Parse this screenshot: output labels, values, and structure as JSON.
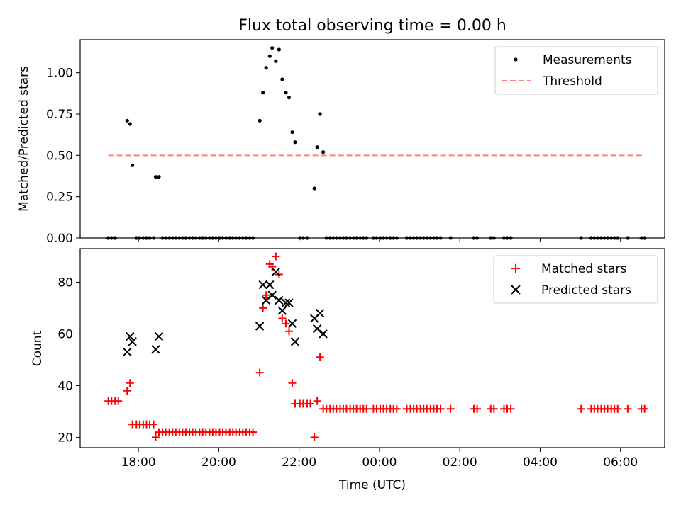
{
  "chart_data": [
    {
      "type": "scatter",
      "title": "Flux total observing time = 0.00 h",
      "xlabel": "",
      "ylabel": "Matched/Predicted stars",
      "xlim_hours": [
        16.55,
        31.1
      ],
      "ylim": [
        0,
        1.2
      ],
      "y_ticks": [
        0.0,
        0.25,
        0.5,
        0.75,
        1.0
      ],
      "y_tick_labels": [
        "0.00",
        "0.25",
        "0.50",
        "0.75",
        "1.00"
      ],
      "legend": {
        "position": "top-right",
        "entries": [
          "Measurements",
          "Threshold"
        ]
      },
      "series": [
        {
          "name": "Measurements",
          "marker": "dot",
          "color": "#000000",
          "points": [
            [
              17.25,
              0
            ],
            [
              17.33,
              0
            ],
            [
              17.42,
              0
            ],
            [
              17.72,
              0.71
            ],
            [
              17.79,
              0.69
            ],
            [
              17.85,
              0.44
            ],
            [
              17.95,
              0
            ],
            [
              18.03,
              0
            ],
            [
              18.12,
              0
            ],
            [
              18.2,
              0
            ],
            [
              18.28,
              0
            ],
            [
              18.38,
              0
            ],
            [
              18.43,
              0.37
            ],
            [
              18.51,
              0.37
            ],
            [
              18.6,
              0
            ],
            [
              18.68,
              0
            ],
            [
              18.77,
              0
            ],
            [
              18.85,
              0
            ],
            [
              18.93,
              0
            ],
            [
              19.02,
              0
            ],
            [
              19.1,
              0
            ],
            [
              19.18,
              0
            ],
            [
              19.27,
              0
            ],
            [
              19.35,
              0
            ],
            [
              19.43,
              0
            ],
            [
              19.52,
              0
            ],
            [
              19.6,
              0
            ],
            [
              19.68,
              0
            ],
            [
              19.77,
              0
            ],
            [
              19.85,
              0
            ],
            [
              19.93,
              0
            ],
            [
              20.02,
              0
            ],
            [
              20.1,
              0
            ],
            [
              20.18,
              0
            ],
            [
              20.27,
              0
            ],
            [
              20.35,
              0
            ],
            [
              20.43,
              0
            ],
            [
              20.52,
              0
            ],
            [
              20.6,
              0
            ],
            [
              20.68,
              0
            ],
            [
              20.77,
              0
            ],
            [
              20.85,
              0
            ],
            [
              21.02,
              0.71
            ],
            [
              21.1,
              0.88
            ],
            [
              21.18,
              1.03
            ],
            [
              21.27,
              1.1
            ],
            [
              21.33,
              1.15
            ],
            [
              21.42,
              1.07
            ],
            [
              21.5,
              1.14
            ],
            [
              21.58,
              0.96
            ],
            [
              21.67,
              0.88
            ],
            [
              21.75,
              0.85
            ],
            [
              21.83,
              0.64
            ],
            [
              21.9,
              0.58
            ],
            [
              22.02,
              0
            ],
            [
              22.1,
              0
            ],
            [
              22.2,
              0
            ],
            [
              22.38,
              0.3
            ],
            [
              22.45,
              0.55
            ],
            [
              22.52,
              0.75
            ],
            [
              22.6,
              0.52
            ],
            [
              22.68,
              0
            ],
            [
              22.77,
              0
            ],
            [
              22.85,
              0
            ],
            [
              22.93,
              0
            ],
            [
              23.02,
              0
            ],
            [
              23.1,
              0
            ],
            [
              23.18,
              0
            ],
            [
              23.27,
              0
            ],
            [
              23.35,
              0
            ],
            [
              23.43,
              0
            ],
            [
              23.52,
              0
            ],
            [
              23.6,
              0
            ],
            [
              23.68,
              0
            ],
            [
              23.85,
              0
            ],
            [
              23.93,
              0
            ],
            [
              24.02,
              0
            ],
            [
              24.1,
              0
            ],
            [
              24.18,
              0
            ],
            [
              24.27,
              0
            ],
            [
              24.35,
              0
            ],
            [
              24.43,
              0
            ],
            [
              24.68,
              0
            ],
            [
              24.77,
              0
            ],
            [
              24.85,
              0
            ],
            [
              24.93,
              0
            ],
            [
              25.02,
              0
            ],
            [
              25.1,
              0
            ],
            [
              25.18,
              0
            ],
            [
              25.27,
              0
            ],
            [
              25.35,
              0
            ],
            [
              25.43,
              0
            ],
            [
              25.52,
              0
            ],
            [
              25.77,
              0
            ],
            [
              26.35,
              0
            ],
            [
              26.43,
              0
            ],
            [
              26.77,
              0
            ],
            [
              26.85,
              0
            ],
            [
              27.1,
              0
            ],
            [
              27.18,
              0
            ],
            [
              27.27,
              0
            ],
            [
              29.02,
              0
            ],
            [
              29.27,
              0
            ],
            [
              29.35,
              0
            ],
            [
              29.43,
              0
            ],
            [
              29.52,
              0
            ],
            [
              29.6,
              0
            ],
            [
              29.68,
              0
            ],
            [
              29.77,
              0
            ],
            [
              29.85,
              0
            ],
            [
              29.93,
              0
            ],
            [
              30.18,
              0
            ],
            [
              30.52,
              0
            ],
            [
              30.6,
              0
            ]
          ]
        },
        {
          "name": "Threshold",
          "line": "dashed",
          "color": "#ff7f7f",
          "points": [
            [
              17.25,
              0.5
            ],
            [
              30.6,
              0.5
            ]
          ]
        }
      ]
    },
    {
      "type": "scatter",
      "xlabel": "Time (UTC)",
      "ylabel": "Count",
      "xlim_hours": [
        16.55,
        31.1
      ],
      "ylim": [
        16,
        93
      ],
      "x_ticks_hours": [
        18,
        20,
        22,
        24,
        26,
        28,
        30
      ],
      "x_tick_labels": [
        "18:00",
        "20:00",
        "22:00",
        "00:00",
        "02:00",
        "04:00",
        "06:00"
      ],
      "y_ticks": [
        20,
        40,
        60,
        80
      ],
      "y_tick_labels": [
        "20",
        "40",
        "60",
        "80"
      ],
      "legend": {
        "position": "top-right",
        "entries": [
          "Matched stars",
          "Predicted stars"
        ]
      },
      "series": [
        {
          "name": "Matched stars",
          "marker": "plus",
          "color": "#ff0000",
          "points": [
            [
              17.25,
              34
            ],
            [
              17.33,
              34
            ],
            [
              17.42,
              34
            ],
            [
              17.5,
              34
            ],
            [
              17.72,
              38
            ],
            [
              17.79,
              41
            ],
            [
              17.85,
              25
            ],
            [
              17.95,
              25
            ],
            [
              18.03,
              25
            ],
            [
              18.12,
              25
            ],
            [
              18.2,
              25
            ],
            [
              18.28,
              25
            ],
            [
              18.38,
              25
            ],
            [
              18.43,
              20
            ],
            [
              18.51,
              22
            ],
            [
              18.6,
              22
            ],
            [
              18.68,
              22
            ],
            [
              18.77,
              22
            ],
            [
              18.85,
              22
            ],
            [
              18.93,
              22
            ],
            [
              19.02,
              22
            ],
            [
              19.1,
              22
            ],
            [
              19.18,
              22
            ],
            [
              19.27,
              22
            ],
            [
              19.35,
              22
            ],
            [
              19.43,
              22
            ],
            [
              19.52,
              22
            ],
            [
              19.6,
              22
            ],
            [
              19.68,
              22
            ],
            [
              19.77,
              22
            ],
            [
              19.85,
              22
            ],
            [
              19.93,
              22
            ],
            [
              20.02,
              22
            ],
            [
              20.1,
              22
            ],
            [
              20.18,
              22
            ],
            [
              20.27,
              22
            ],
            [
              20.35,
              22
            ],
            [
              20.43,
              22
            ],
            [
              20.52,
              22
            ],
            [
              20.6,
              22
            ],
            [
              20.68,
              22
            ],
            [
              20.77,
              22
            ],
            [
              20.85,
              22
            ],
            [
              21.02,
              45
            ],
            [
              21.1,
              70
            ],
            [
              21.18,
              75
            ],
            [
              21.27,
              87
            ],
            [
              21.33,
              86
            ],
            [
              21.42,
              90
            ],
            [
              21.5,
              83
            ],
            [
              21.58,
              66
            ],
            [
              21.67,
              64
            ],
            [
              21.75,
              61
            ],
            [
              21.83,
              41
            ],
            [
              21.9,
              33
            ],
            [
              22.02,
              33
            ],
            [
              22.1,
              33
            ],
            [
              22.2,
              33
            ],
            [
              22.28,
              33
            ],
            [
              22.38,
              20
            ],
            [
              22.45,
              34
            ],
            [
              22.52,
              51
            ],
            [
              22.6,
              31
            ],
            [
              22.68,
              31
            ],
            [
              22.77,
              31
            ],
            [
              22.85,
              31
            ],
            [
              22.93,
              31
            ],
            [
              23.02,
              31
            ],
            [
              23.1,
              31
            ],
            [
              23.18,
              31
            ],
            [
              23.27,
              31
            ],
            [
              23.35,
              31
            ],
            [
              23.43,
              31
            ],
            [
              23.52,
              31
            ],
            [
              23.6,
              31
            ],
            [
              23.68,
              31
            ],
            [
              23.85,
              31
            ],
            [
              23.93,
              31
            ],
            [
              24.02,
              31
            ],
            [
              24.1,
              31
            ],
            [
              24.18,
              31
            ],
            [
              24.27,
              31
            ],
            [
              24.35,
              31
            ],
            [
              24.43,
              31
            ],
            [
              24.68,
              31
            ],
            [
              24.77,
              31
            ],
            [
              24.85,
              31
            ],
            [
              24.93,
              31
            ],
            [
              25.02,
              31
            ],
            [
              25.1,
              31
            ],
            [
              25.18,
              31
            ],
            [
              25.27,
              31
            ],
            [
              25.35,
              31
            ],
            [
              25.43,
              31
            ],
            [
              25.52,
              31
            ],
            [
              25.77,
              31
            ],
            [
              26.35,
              31
            ],
            [
              26.43,
              31
            ],
            [
              26.77,
              31
            ],
            [
              26.85,
              31
            ],
            [
              27.1,
              31
            ],
            [
              27.18,
              31
            ],
            [
              27.27,
              31
            ],
            [
              29.02,
              31
            ],
            [
              29.27,
              31
            ],
            [
              29.35,
              31
            ],
            [
              29.43,
              31
            ],
            [
              29.52,
              31
            ],
            [
              29.6,
              31
            ],
            [
              29.68,
              31
            ],
            [
              29.77,
              31
            ],
            [
              29.85,
              31
            ],
            [
              29.93,
              31
            ],
            [
              30.18,
              31
            ],
            [
              30.52,
              31
            ],
            [
              30.6,
              31
            ]
          ]
        },
        {
          "name": "Predicted stars",
          "marker": "x",
          "color": "#000000",
          "points": [
            [
              17.72,
              53
            ],
            [
              17.79,
              59
            ],
            [
              17.85,
              57
            ],
            [
              18.43,
              54
            ],
            [
              18.51,
              59
            ],
            [
              21.02,
              63
            ],
            [
              21.1,
              79
            ],
            [
              21.18,
              73
            ],
            [
              21.27,
              79
            ],
            [
              21.33,
              75
            ],
            [
              21.42,
              84
            ],
            [
              21.5,
              73
            ],
            [
              21.58,
              69
            ],
            [
              21.67,
              72
            ],
            [
              21.75,
              72
            ],
            [
              21.83,
              64
            ],
            [
              21.9,
              57
            ],
            [
              22.38,
              66
            ],
            [
              22.45,
              62
            ],
            [
              22.52,
              68
            ],
            [
              22.6,
              60
            ]
          ]
        }
      ]
    }
  ]
}
